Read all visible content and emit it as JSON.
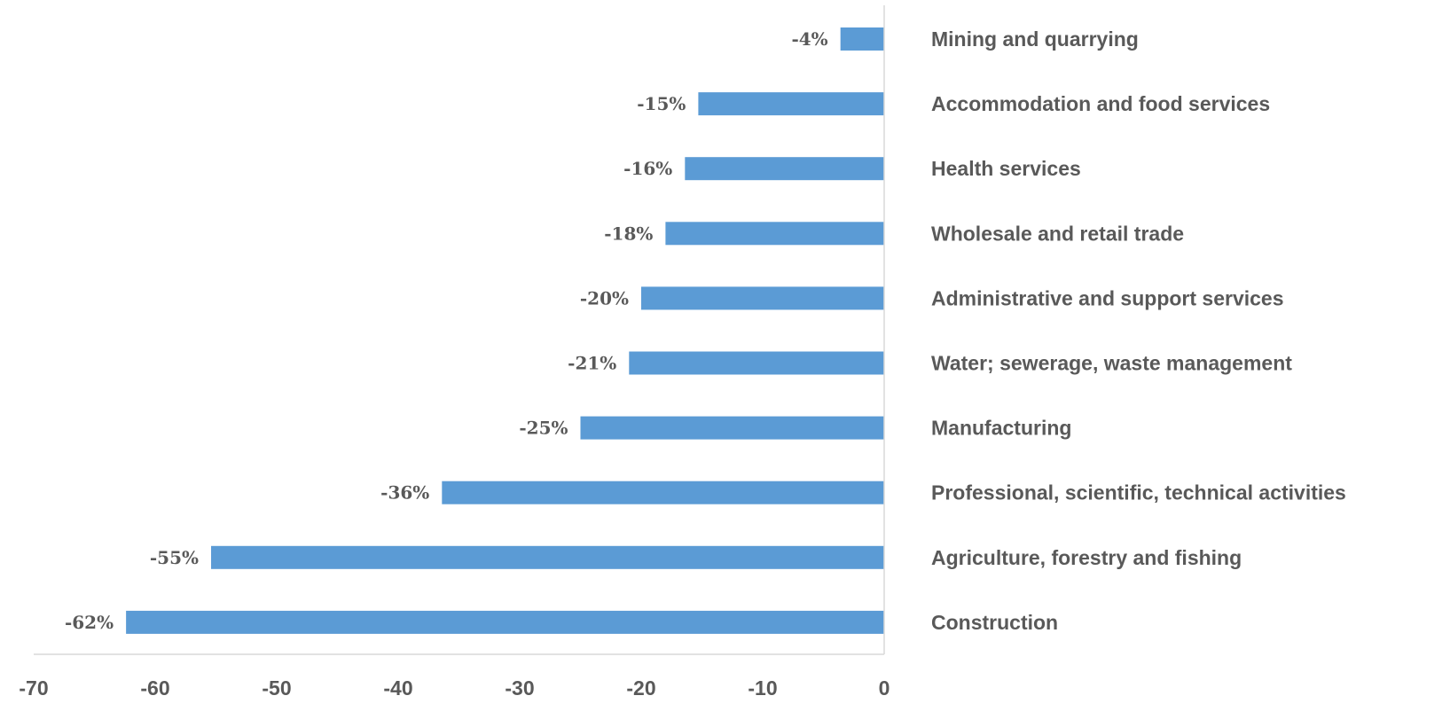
{
  "chart_data": {
    "type": "bar",
    "orientation": "horizontal",
    "categories": [
      "Mining and quarrying",
      "Accommodation and food services",
      "Health services",
      "Wholesale and retail trade",
      "Administrative and support services",
      "Water; sewerage, waste management",
      "Manufacturing",
      "Professional, scientific, technical activities",
      "Agriculture, forestry and fishing",
      "Construction"
    ],
    "values": [
      -3.6,
      -15.3,
      -16.4,
      -18,
      -20,
      -21,
      -25,
      -36.4,
      -55.4,
      -62.4
    ],
    "data_labels": [
      "-4%",
      "-15%",
      "-16%",
      "-18%",
      "-20%",
      "-21%",
      "-25%",
      "-36%",
      "-55%",
      "-62%"
    ],
    "xlim": [
      -70,
      0
    ],
    "xticks": [
      -70,
      -60,
      -50,
      -40,
      -30,
      -20,
      -10,
      0
    ],
    "tick_labels": [
      "-70",
      "-60",
      "-50",
      "-40",
      "-30",
      "-20",
      "-10",
      "0"
    ],
    "bar_color": "#5b9bd5",
    "grid": false,
    "legend": "none"
  }
}
